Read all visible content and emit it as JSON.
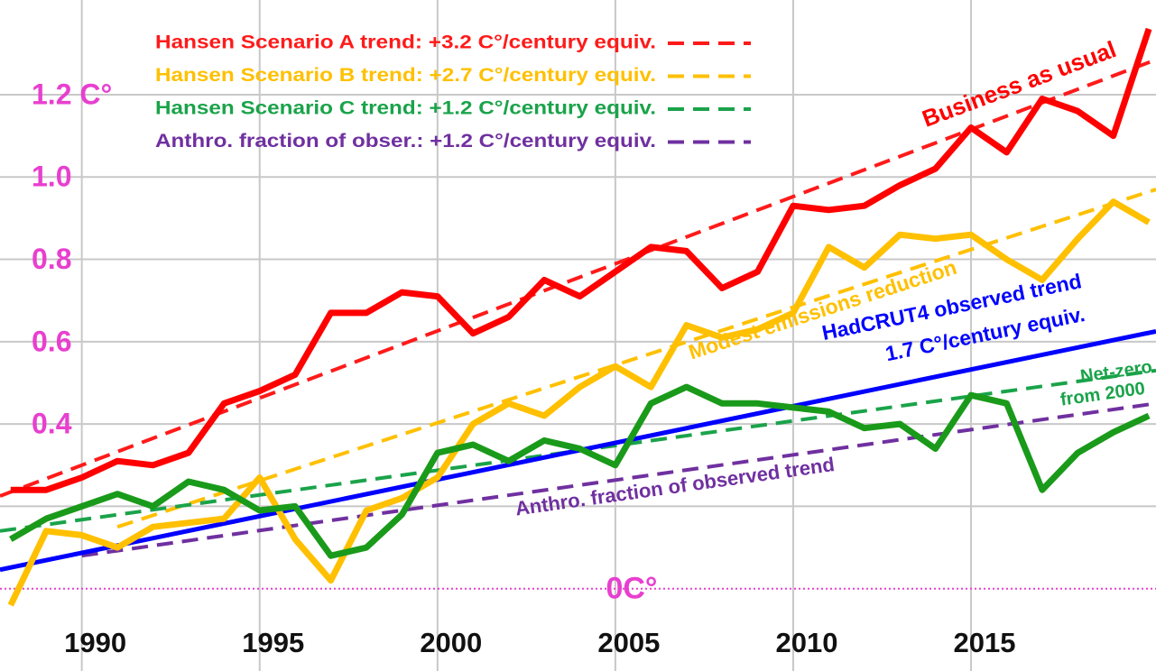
{
  "chart_data": {
    "type": "line",
    "xlim": [
      1987.7,
      2020.2
    ],
    "ylim": [
      -0.2,
      1.43
    ],
    "xticks": [
      1990,
      1995,
      2000,
      2005,
      2010,
      2015
    ],
    "yticks": [
      {
        "value": 0,
        "label": "0C°"
      },
      {
        "value": 0.2,
        "label": null
      },
      0.4,
      0.6,
      0.8,
      {
        "value": 1.0,
        "label": "1.0"
      },
      {
        "value": 1.2,
        "label": "1.2 C°"
      }
    ],
    "grid": true,
    "tick_label_color": "#e83fcf",
    "x": [
      1988,
      1989,
      1990,
      1991,
      1992,
      1993,
      1994,
      1995,
      1996,
      1997,
      1998,
      1999,
      2000,
      2001,
      2002,
      2003,
      2004,
      2005,
      2006,
      2007,
      2008,
      2009,
      2010,
      2011,
      2012,
      2013,
      2014,
      2015,
      2016,
      2017,
      2018,
      2019,
      2020
    ],
    "series": [
      {
        "color": "#ff0000",
        "values": [
          0.24,
          0.24,
          0.27,
          0.31,
          0.3,
          0.33,
          0.45,
          0.48,
          0.52,
          0.67,
          0.67,
          0.72,
          0.71,
          0.62,
          0.66,
          0.75,
          0.71,
          0.77,
          0.83,
          0.82,
          0.73,
          0.77,
          0.93,
          0.92,
          0.93,
          0.98,
          1.02,
          1.12,
          1.06,
          1.19,
          1.16,
          1.1,
          1.36
        ]
      },
      {
        "color": "#ffc000",
        "values": [
          -0.04,
          0.14,
          0.13,
          0.1,
          0.15,
          0.16,
          0.17,
          0.27,
          0.12,
          0.02,
          0.19,
          0.22,
          0.27,
          0.4,
          0.45,
          0.42,
          0.49,
          0.54,
          0.49,
          0.64,
          0.61,
          0.63,
          0.67,
          0.83,
          0.78,
          0.86,
          0.85,
          0.86,
          0.8,
          0.75,
          0.85,
          0.94,
          0.89
        ]
      },
      {
        "color": "#1a9a1a",
        "values": [
          0.12,
          0.17,
          0.2,
          0.23,
          0.2,
          0.26,
          0.24,
          0.19,
          0.2,
          0.08,
          0.1,
          0.18,
          0.33,
          0.35,
          0.31,
          0.36,
          0.34,
          0.3,
          0.45,
          0.49,
          0.45,
          0.45,
          0.44,
          0.43,
          0.39,
          0.4,
          0.34,
          0.47,
          0.45,
          0.24,
          0.33,
          0.38,
          0.42
        ]
      }
    ],
    "trends": [
      {
        "name": "Hansen Scenario A trend: +3.2 C°/century equiv.",
        "color": "#ff1a1a",
        "dashed": true,
        "x": [
          1987.7,
          2020.2
        ],
        "values": [
          0.225,
          1.285
        ]
      },
      {
        "name": "Hansen Scenario B trend: +2.7 C°/century equiv.",
        "color": "#ffc000",
        "dashed": true,
        "x": [
          1991,
          2020.2
        ],
        "values": [
          0.15,
          0.97
        ]
      },
      {
        "name": "Hansen Scenario C trend: +1.2 C°/century equiv.",
        "color": "#1aa34a",
        "dashed": true,
        "x": [
          1987.7,
          2020.2
        ],
        "values": [
          0.14,
          0.53
        ]
      },
      {
        "name": "Anthro. fraction of obser.: +1.2 C°/century equiv.",
        "color": "#7030a0",
        "dashed": true,
        "x": [
          1990,
          2020.2
        ],
        "values": [
          0.08,
          0.45
        ]
      },
      {
        "color": "#0000ff",
        "dashed": false,
        "x": [
          1987.7,
          2020.2
        ],
        "values": [
          0.046,
          0.625
        ]
      }
    ],
    "annotations": [
      {
        "text": "Business as usual",
        "color": "#ff0000"
      },
      {
        "text": "Modest emissions reduction",
        "color": "#ffc000"
      },
      {
        "text": "HadCRUT4 observed trend",
        "color": "#0000ff"
      },
      {
        "text": "1.7 C°/century equiv.",
        "color": "#0000ff"
      },
      {
        "text": "Net-zero",
        "color": "#1aa34a"
      },
      {
        "text": "from 2000",
        "color": "#1aa34a"
      },
      {
        "text": "Anthro. fraction of observed trend",
        "color": "#7030a0"
      }
    ]
  }
}
